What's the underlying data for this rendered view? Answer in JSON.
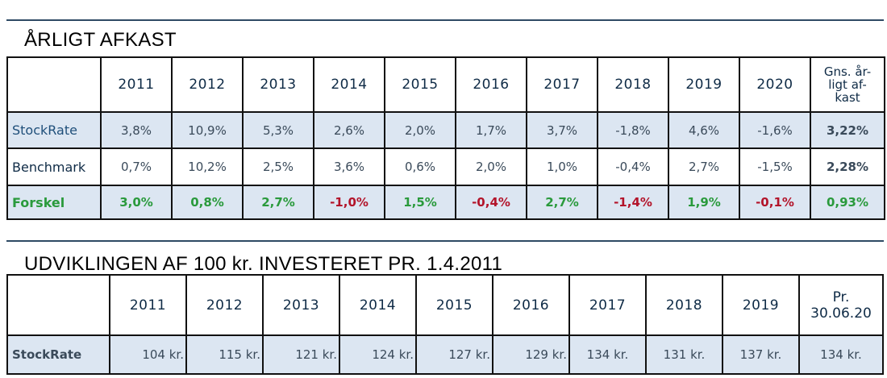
{
  "section1": {
    "title": "ÅRLIGT AFKAST",
    "years": [
      "2011",
      "2012",
      "2013",
      "2014",
      "2015",
      "2016",
      "2017",
      "2018",
      "2019",
      "2020"
    ],
    "avg_header_lines": [
      "Gns. år-",
      "ligt af-",
      "kast"
    ],
    "rows": [
      {
        "label": "StockRate",
        "values": [
          "3,8%",
          "10,9%",
          "5,3%",
          "2,6%",
          "2,0%",
          "1,7%",
          "3,7%",
          "-1,8%",
          "4,6%",
          "-1,6%"
        ],
        "avg": "3,22%"
      },
      {
        "label": "Benchmark",
        "values": [
          "0,7%",
          "10,2%",
          "2,5%",
          "3,6%",
          "0,6%",
          "2,0%",
          "1,0%",
          "-0,4%",
          "2,7%",
          "-1,5%"
        ],
        "avg": "2,28%"
      },
      {
        "label": "Forskel",
        "values": [
          "3,0%",
          "0,8%",
          "2,7%",
          "-1,0%",
          "1,5%",
          "-0,4%",
          "2,7%",
          "-1,4%",
          "1,9%",
          "-0,1%"
        ],
        "avg": "0,93%"
      }
    ]
  },
  "section2": {
    "title": "UDVIKLINGEN AF 100 kr. INVESTERET PR. 1.4.2011",
    "years": [
      "2011",
      "2012",
      "2013",
      "2014",
      "2015",
      "2016",
      "2017",
      "2018",
      "2019"
    ],
    "last_header_lines": [
      "Pr.",
      "30.06.20"
    ],
    "row": {
      "label": "StockRate",
      "values": [
        "104 kr.",
        "115 kr.",
        "121 kr.",
        "124 kr.",
        "127 kr.",
        "129 kr.",
        "134 kr.",
        "131 kr.",
        "137 kr.",
        "134 kr."
      ]
    }
  },
  "colors": {
    "positive": "#2a9a3c",
    "negative": "#b3142a",
    "row_fill": "#dce6f2",
    "rule": "#2e4a64"
  }
}
